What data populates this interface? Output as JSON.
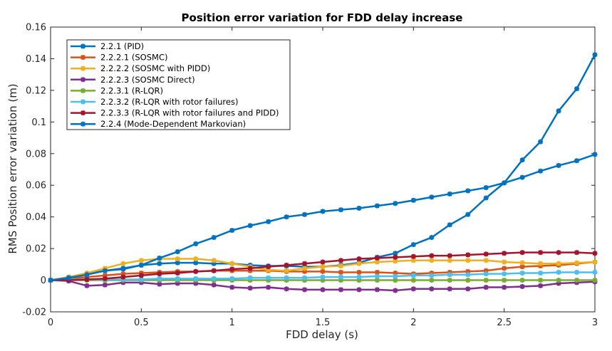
{
  "chart_data": {
    "type": "line",
    "title": "Position error variation for FDD delay increase",
    "xlabel": "FDD delay (s)",
    "ylabel": "RMS Position error variation (m)",
    "xlim": [
      0,
      3
    ],
    "ylim": [
      -0.02,
      0.16
    ],
    "xticks": [
      0,
      0.5,
      1,
      1.5,
      2,
      2.5,
      3
    ],
    "xtick_labels": [
      "0",
      "0.5",
      "1",
      "1.5",
      "2",
      "2.5",
      "3"
    ],
    "yticks": [
      -0.02,
      0,
      0.02,
      0.04,
      0.06,
      0.08,
      0.1,
      0.12,
      0.14,
      0.16
    ],
    "ytick_labels": [
      "-0.02",
      "0",
      "0.02",
      "0.04",
      "0.06",
      "0.08",
      "0.1",
      "0.12",
      "0.14",
      "0.16"
    ],
    "grid": false,
    "legend_position": "top-left",
    "x": [
      0,
      0.1,
      0.2,
      0.3,
      0.4,
      0.5,
      0.6,
      0.7,
      0.8,
      0.9,
      1.0,
      1.1,
      1.2,
      1.3,
      1.4,
      1.5,
      1.6,
      1.7,
      1.8,
      1.9,
      2.0,
      2.1,
      2.2,
      2.3,
      2.4,
      2.5,
      2.6,
      2.7,
      2.8,
      2.9,
      3.0
    ],
    "series": [
      {
        "name": "2.2.1 (PID)",
        "color": "#0072BD",
        "values": [
          0,
          0.002,
          0.004,
          0.006,
          0.007,
          0.0095,
          0.0105,
          0.011,
          0.011,
          0.0105,
          0.0105,
          0.0095,
          0.009,
          0.009,
          0.0085,
          0.0085,
          0.0095,
          0.011,
          0.0145,
          0.017,
          0.0225,
          0.027,
          0.035,
          0.0415,
          0.052,
          0.0615,
          0.076,
          0.0875,
          0.107,
          0.121,
          0.1425
        ]
      },
      {
        "name": "2.2.2.1 (SOSMC)",
        "color": "#D95319",
        "values": [
          0,
          0.001,
          0.002,
          0.003,
          0.004,
          0.0045,
          0.005,
          0.0055,
          0.0055,
          0.006,
          0.006,
          0.006,
          0.006,
          0.0055,
          0.0055,
          0.0055,
          0.005,
          0.005,
          0.005,
          0.0045,
          0.004,
          0.0045,
          0.005,
          0.0055,
          0.006,
          0.0075,
          0.0085,
          0.009,
          0.0095,
          0.0105,
          0.0115
        ]
      },
      {
        "name": "2.2.2.2 (SOSMC with PIDD)",
        "color": "#EDB120",
        "values": [
          0,
          0.002,
          0.0045,
          0.0075,
          0.0105,
          0.0125,
          0.0135,
          0.0135,
          0.0135,
          0.0125,
          0.0105,
          0.0085,
          0.0065,
          0.006,
          0.0075,
          0.0085,
          0.009,
          0.0105,
          0.0115,
          0.012,
          0.0125,
          0.0125,
          0.0125,
          0.0125,
          0.0125,
          0.0115,
          0.011,
          0.0105,
          0.0105,
          0.011,
          0.0115
        ]
      },
      {
        "name": "2.2.2.3 (SOSMC Direct)",
        "color": "#7E2F8E",
        "values": [
          0,
          -0.0005,
          -0.0035,
          -0.003,
          -0.0015,
          -0.0015,
          -0.0025,
          -0.002,
          -0.002,
          -0.003,
          -0.0045,
          -0.005,
          -0.0045,
          -0.0055,
          -0.006,
          -0.006,
          -0.006,
          -0.006,
          -0.006,
          -0.0065,
          -0.0055,
          -0.0055,
          -0.0055,
          -0.0055,
          -0.0045,
          -0.0045,
          -0.004,
          -0.0035,
          -0.002,
          -0.0015,
          -0.001
        ]
      },
      {
        "name": "2.2.3.1 (R-LQR)",
        "color": "#77AC30",
        "values": [
          0,
          0,
          0,
          0,
          0,
          0,
          0,
          0,
          0,
          0,
          0,
          0,
          0,
          0,
          0,
          0,
          0,
          0,
          0,
          0,
          0,
          0,
          0,
          0,
          0,
          0,
          0,
          0,
          0,
          0,
          0
        ]
      },
      {
        "name": "2.2.3.2 (R-LQR with rotor failures)",
        "color": "#4DBEEE",
        "values": [
          0,
          0.0005,
          0.0005,
          0.0005,
          0.0005,
          0.0005,
          0.001,
          0.001,
          0.001,
          0.001,
          0.001,
          0.0015,
          0.0015,
          0.0015,
          0.0015,
          0.002,
          0.002,
          0.002,
          0.0025,
          0.0025,
          0.003,
          0.003,
          0.0035,
          0.0035,
          0.004,
          0.004,
          0.0045,
          0.0045,
          0.005,
          0.005,
          0.005
        ]
      },
      {
        "name": "2.2.3.3 (R-LQR with rotor failures and PIDD)",
        "color": "#A2142F",
        "values": [
          0,
          0,
          0.0005,
          0.001,
          0.002,
          0.003,
          0.004,
          0.0045,
          0.0055,
          0.006,
          0.007,
          0.0075,
          0.0085,
          0.0095,
          0.0105,
          0.0115,
          0.0125,
          0.0135,
          0.014,
          0.0145,
          0.015,
          0.0155,
          0.0155,
          0.016,
          0.0165,
          0.017,
          0.0175,
          0.0175,
          0.0175,
          0.0175,
          0.017
        ]
      },
      {
        "name": "2.2.4 (Mode-Dependent Markovian)",
        "color": "#0072BD",
        "values": [
          0,
          0.0015,
          0.0035,
          0.006,
          0.0075,
          0.0095,
          0.014,
          0.018,
          0.023,
          0.027,
          0.0315,
          0.0345,
          0.037,
          0.04,
          0.0415,
          0.0435,
          0.0445,
          0.0455,
          0.047,
          0.0485,
          0.0505,
          0.0525,
          0.0545,
          0.0565,
          0.0585,
          0.0615,
          0.065,
          0.069,
          0.0725,
          0.0755,
          0.0795
        ]
      }
    ]
  }
}
